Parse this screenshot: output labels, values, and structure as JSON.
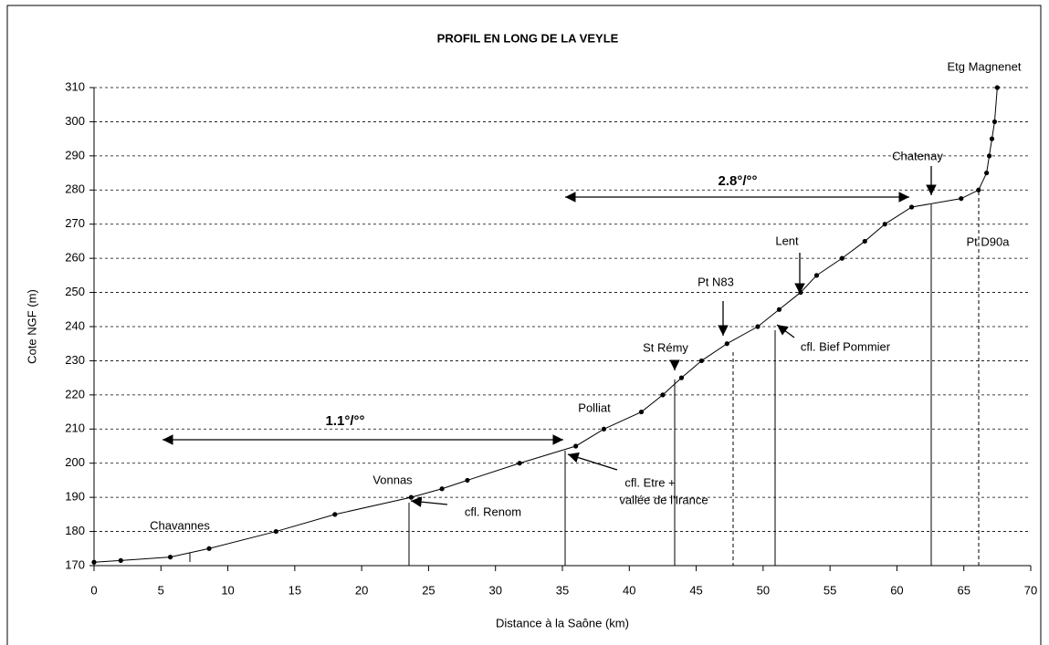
{
  "chart_data": {
    "type": "line",
    "title": "PROFIL EN LONG DE LA VEYLE",
    "x_label": "Distance à la Saône (km)",
    "y_label": "Cote NGF (m)",
    "xlim": [
      0,
      70
    ],
    "xticks": [
      0,
      5,
      10,
      15,
      20,
      25,
      30,
      35,
      40,
      45,
      50,
      55,
      60,
      65,
      70
    ],
    "ylim": [
      170,
      310
    ],
    "yticks": [
      170,
      180,
      190,
      200,
      210,
      220,
      230,
      240,
      250,
      260,
      270,
      280,
      290,
      300,
      310
    ],
    "grid": true,
    "series": [
      {
        "color": "#000000",
        "x": [
          0,
          2.0,
          5.7,
          8.6,
          13.6,
          18.0,
          23.7,
          26.0,
          27.9,
          31.8,
          36.0,
          38.1,
          40.9,
          42.5,
          43.9,
          45.4,
          47.3,
          49.6,
          51.2,
          52.8,
          54.0,
          55.9,
          57.6,
          59.1,
          61.1,
          64.8,
          66.1,
          66.7,
          66.9,
          67.1,
          67.3,
          67.5
        ],
        "values": [
          171,
          171.5,
          172.5,
          175,
          180,
          185,
          190,
          192.5,
          195,
          200,
          205,
          210,
          215,
          220,
          225,
          230,
          235,
          240,
          245,
          250,
          255,
          260,
          265,
          270,
          275,
          277.5,
          280,
          285,
          290,
          295,
          300,
          310
        ]
      }
    ],
    "annotations": [
      "Etg Magnenet",
      "Chatenay",
      "2.8°/°°",
      "Pt D90a",
      "Lent",
      "Pt N83",
      "St Rémy",
      "cfl. Bief Pommier",
      "Polliat",
      "1.1°/°°",
      "cfl. Etre +",
      "vallée de l'Irance",
      "Vonnas",
      "cfl. Renom",
      "Chavannes"
    ]
  }
}
